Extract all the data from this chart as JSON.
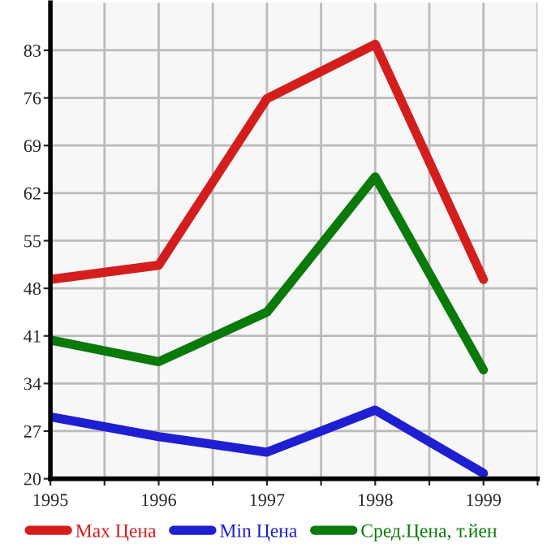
{
  "chart_data": {
    "type": "line",
    "x": [
      1995,
      1996,
      1997,
      1998,
      1999
    ],
    "series": [
      {
        "name": "Max Цена",
        "color": "#d41e1e",
        "values": [
          49.3,
          51.4,
          75.9,
          83.9,
          49.3
        ]
      },
      {
        "name": "Min Цена",
        "color": "#1e1ed2",
        "values": [
          29.1,
          26.2,
          23.9,
          30.1,
          20.8
        ]
      },
      {
        "name": "Сред.Цена, т.йен",
        "color": "#0a7a0a",
        "values": [
          40.4,
          37.2,
          44.5,
          64.4,
          36.0
        ]
      }
    ],
    "xlim": [
      1995,
      1999.5
    ],
    "xticks": [
      1995,
      {
        "value": 1995.5,
        "label": null
      },
      1996,
      {
        "value": 1996.5,
        "label": null
      },
      1997,
      {
        "value": 1997.5,
        "label": null
      },
      1998,
      {
        "value": 1998.5,
        "label": null
      },
      1999,
      {
        "value": 1999.5,
        "label": null
      }
    ],
    "ylim": [
      20,
      90
    ],
    "yticks": [
      20,
      27,
      34,
      41,
      48,
      55,
      62,
      69,
      76,
      83
    ],
    "grid": true,
    "legend": "bottom",
    "marker": "none",
    "line_style": "solid"
  }
}
